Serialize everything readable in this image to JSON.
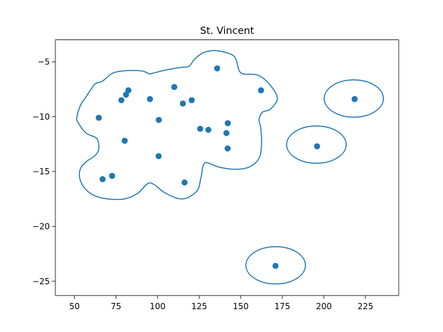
{
  "chart_data": {
    "type": "scatter",
    "title": "St. Vincent",
    "xlabel": "",
    "ylabel": "",
    "xlim": [
      38.5,
      245
    ],
    "ylim": [
      -26.3,
      -3.0
    ],
    "xticks": [
      50,
      75,
      100,
      125,
      150,
      175,
      200,
      225
    ],
    "yticks": [
      -5,
      -10,
      -15,
      -20,
      -25
    ],
    "xtick_labels": [
      "50",
      "75",
      "100",
      "125",
      "150",
      "175",
      "200",
      "225"
    ],
    "ytick_labels": [
      "−5",
      "−10",
      "−15",
      "−20",
      "−25"
    ],
    "grid": false,
    "color": "#1f77b4",
    "points": [
      {
        "x": 135.8,
        "y": -5.6
      },
      {
        "x": 162.2,
        "y": -7.6
      },
      {
        "x": 110.0,
        "y": -7.3
      },
      {
        "x": 82.4,
        "y": -7.6
      },
      {
        "x": 81.0,
        "y": -8.0
      },
      {
        "x": 78.2,
        "y": -8.5
      },
      {
        "x": 95.4,
        "y": -8.4
      },
      {
        "x": 115.2,
        "y": -8.8
      },
      {
        "x": 120.5,
        "y": -8.5
      },
      {
        "x": 64.6,
        "y": -10.1
      },
      {
        "x": 100.7,
        "y": -10.3
      },
      {
        "x": 142.2,
        "y": -10.6
      },
      {
        "x": 125.6,
        "y": -11.1
      },
      {
        "x": 130.5,
        "y": -11.2
      },
      {
        "x": 141.4,
        "y": -11.5
      },
      {
        "x": 80.2,
        "y": -12.2
      },
      {
        "x": 142.1,
        "y": -12.9
      },
      {
        "x": 100.6,
        "y": -13.6
      },
      {
        "x": 72.6,
        "y": -15.4
      },
      {
        "x": 66.9,
        "y": -15.7
      },
      {
        "x": 116.2,
        "y": -16.0
      },
      {
        "x": 218.5,
        "y": -8.4
      },
      {
        "x": 195.9,
        "y": -12.7
      },
      {
        "x": 170.9,
        "y": -23.6
      }
    ],
    "contours": [
      [
        [
          136.0,
          -4.0
        ],
        [
          146.0,
          -4.5
        ],
        [
          150.0,
          -6.0
        ],
        [
          160.0,
          -6.2
        ],
        [
          167.0,
          -7.0
        ],
        [
          172.0,
          -8.3
        ],
        [
          168.0,
          -9.3
        ],
        [
          163.0,
          -9.6
        ],
        [
          161.0,
          -10.3
        ],
        [
          162.0,
          -11.0
        ],
        [
          162.5,
          -12.5
        ],
        [
          161.0,
          -13.8
        ],
        [
          155.0,
          -14.6
        ],
        [
          147.0,
          -14.8
        ],
        [
          137.0,
          -14.6
        ],
        [
          130.0,
          -14.2
        ],
        [
          128.0,
          -14.3
        ],
        [
          127.0,
          -14.7
        ],
        [
          126.0,
          -15.6
        ],
        [
          123.5,
          -16.8
        ],
        [
          115.0,
          -17.5
        ],
        [
          105.0,
          -17.0
        ],
        [
          98.0,
          -16.2
        ],
        [
          94.0,
          -16.1
        ],
        [
          88.0,
          -17.0
        ],
        [
          80.0,
          -17.5
        ],
        [
          70.0,
          -17.5
        ],
        [
          62.0,
          -17.2
        ],
        [
          56.0,
          -16.5
        ],
        [
          53.0,
          -15.5
        ],
        [
          54.0,
          -14.6
        ],
        [
          58.0,
          -14.0
        ],
        [
          62.0,
          -13.6
        ],
        [
          64.5,
          -13.0
        ],
        [
          63.5,
          -12.0
        ],
        [
          57.0,
          -11.5
        ],
        [
          52.0,
          -10.5
        ],
        [
          51.5,
          -10.0
        ],
        [
          53.5,
          -9.0
        ],
        [
          56.0,
          -8.4
        ],
        [
          60.0,
          -7.5
        ],
        [
          62.5,
          -7.0
        ],
        [
          66.5,
          -6.8
        ],
        [
          69.0,
          -6.5
        ],
        [
          73.5,
          -6.0
        ],
        [
          82.0,
          -5.8
        ],
        [
          91.0,
          -5.85
        ],
        [
          95.0,
          -6.1
        ],
        [
          98.0,
          -6.0
        ],
        [
          103.5,
          -5.8
        ],
        [
          110.0,
          -5.6
        ],
        [
          115.0,
          -5.5
        ],
        [
          119.0,
          -5.4
        ],
        [
          122.0,
          -4.8
        ],
        [
          126.0,
          -4.3
        ],
        [
          130.0,
          -4.05
        ],
        [
          136.0,
          -4.0
        ]
      ]
    ],
    "ellipses": [
      {
        "cx": 218.0,
        "cy": -8.35,
        "rx": 17.8,
        "ry": 1.7
      },
      {
        "cx": 195.5,
        "cy": -12.55,
        "rx": 17.9,
        "ry": 1.7
      },
      {
        "cx": 171.0,
        "cy": -23.55,
        "rx": 17.9,
        "ry": 1.7
      }
    ]
  }
}
